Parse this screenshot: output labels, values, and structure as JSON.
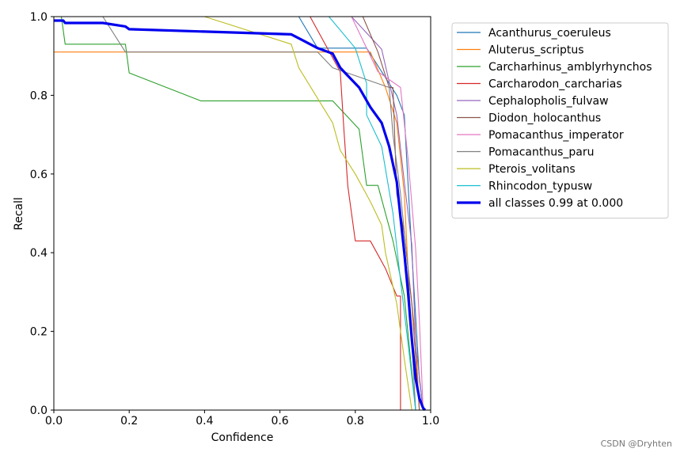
{
  "chart_data": {
    "type": "line",
    "title": "",
    "xlabel": "Confidence",
    "ylabel": "Recall",
    "xlim": [
      0.0,
      1.0
    ],
    "ylim": [
      0.0,
      1.0
    ],
    "xticks": [
      "0.0",
      "0.2",
      "0.4",
      "0.6",
      "0.8",
      "1.0"
    ],
    "yticks": [
      "0.0",
      "0.2",
      "0.4",
      "0.6",
      "0.8",
      "1.0"
    ],
    "grid": false,
    "legend_position": "outside-right",
    "series": [
      {
        "name": "Acanthurus_coeruleus",
        "color": "#1f77b4",
        "thick": false,
        "x": [
          0.0,
          0.65,
          0.7,
          0.83,
          0.87,
          0.91,
          0.93,
          0.95,
          0.97,
          0.98
        ],
        "y": [
          1.0,
          1.0,
          0.92,
          0.92,
          0.86,
          0.8,
          0.75,
          0.4,
          0.08,
          0.0
        ]
      },
      {
        "name": "Aluterus_scriptus",
        "color": "#ff7f0e",
        "thick": false,
        "x": [
          0.0,
          0.8,
          0.84,
          0.88,
          0.91,
          0.93,
          0.94,
          0.96,
          0.97
        ],
        "y": [
          0.91,
          0.91,
          0.91,
          0.82,
          0.73,
          0.55,
          0.36,
          0.18,
          0.0
        ]
      },
      {
        "name": "Carcharhinus_amblyrhynchos",
        "color": "#2ca02c",
        "thick": false,
        "x": [
          0.0,
          0.02,
          0.03,
          0.19,
          0.2,
          0.39,
          0.74,
          0.81,
          0.82,
          0.83,
          0.86,
          0.88,
          0.9,
          0.93,
          0.96
        ],
        "y": [
          1.0,
          1.0,
          0.93,
          0.93,
          0.857,
          0.786,
          0.786,
          0.714,
          0.643,
          0.571,
          0.571,
          0.5,
          0.43,
          0.29,
          0.0
        ]
      },
      {
        "name": "Carcharodon_carcharias",
        "color": "#d62728",
        "thick": false,
        "x": [
          0.0,
          0.68,
          0.76,
          0.77,
          0.78,
          0.8,
          0.84,
          0.88,
          0.91,
          0.92,
          0.92
        ],
        "y": [
          1.0,
          1.0,
          0.86,
          0.71,
          0.57,
          0.43,
          0.43,
          0.36,
          0.29,
          0.29,
          0.0
        ]
      },
      {
        "name": "Cephalopholis_fulvaw",
        "color": "#9467bd",
        "thick": false,
        "x": [
          0.0,
          0.79,
          0.87,
          0.91,
          0.93,
          0.95,
          0.96,
          0.98
        ],
        "y": [
          1.0,
          1.0,
          0.917,
          0.75,
          0.58,
          0.42,
          0.17,
          0.0
        ]
      },
      {
        "name": "Diodon_holocanthus",
        "color": "#8c564b",
        "thick": false,
        "x": [
          0.0,
          0.82,
          0.86,
          0.89,
          0.9,
          0.91,
          0.93,
          0.95,
          0.97
        ],
        "y": [
          1.0,
          1.0,
          0.91,
          0.82,
          0.82,
          0.55,
          0.45,
          0.27,
          0.0
        ]
      },
      {
        "name": "Pomacanthus_imperator",
        "color": "#e377c2",
        "thick": false,
        "x": [
          0.0,
          0.79,
          0.86,
          0.92,
          0.94,
          0.96,
          0.97,
          0.98
        ],
        "y": [
          1.0,
          1.0,
          0.86,
          0.82,
          0.64,
          0.41,
          0.23,
          0.0
        ]
      },
      {
        "name": "Pomacanthus_paru",
        "color": "#7f7f7f",
        "thick": false,
        "x": [
          0.0,
          0.13,
          0.19,
          0.7,
          0.74,
          0.89,
          0.9,
          0.92,
          0.94,
          0.96
        ],
        "y": [
          1.0,
          1.0,
          0.91,
          0.91,
          0.87,
          0.82,
          0.7,
          0.55,
          0.36,
          0.0
        ]
      },
      {
        "name": "Pterois_volitans",
        "color": "#bcbd22",
        "thick": false,
        "x": [
          0.0,
          0.4,
          0.63,
          0.65,
          0.74,
          0.76,
          0.8,
          0.84,
          0.87,
          0.88,
          0.91,
          0.93,
          0.95
        ],
        "y": [
          1.0,
          1.0,
          0.93,
          0.87,
          0.73,
          0.66,
          0.6,
          0.53,
          0.47,
          0.4,
          0.27,
          0.13,
          0.0
        ]
      },
      {
        "name": "Rhincodon_typusw",
        "color": "#17becf",
        "thick": false,
        "x": [
          0.0,
          0.73,
          0.8,
          0.83,
          0.83,
          0.87,
          0.9,
          0.92,
          0.94,
          0.96
        ],
        "y": [
          1.0,
          1.0,
          0.92,
          0.83,
          0.75,
          0.67,
          0.5,
          0.33,
          0.17,
          0.0
        ]
      },
      {
        "name": "all classes 0.99 at 0.000",
        "color": "#0000ee",
        "thick": true,
        "x": [
          0.0,
          0.025,
          0.03,
          0.13,
          0.19,
          0.2,
          0.4,
          0.63,
          0.66,
          0.7,
          0.74,
          0.76,
          0.78,
          0.81,
          0.84,
          0.87,
          0.89,
          0.91,
          0.92,
          0.93,
          0.94,
          0.95,
          0.96,
          0.97,
          0.98,
          0.985
        ],
        "y": [
          0.99,
          0.99,
          0.984,
          0.984,
          0.975,
          0.968,
          0.962,
          0.955,
          0.94,
          0.92,
          0.906,
          0.87,
          0.85,
          0.82,
          0.77,
          0.73,
          0.67,
          0.58,
          0.49,
          0.4,
          0.3,
          0.18,
          0.08,
          0.03,
          0.005,
          0.0
        ]
      }
    ]
  },
  "watermark": "CSDN @Dryhten"
}
